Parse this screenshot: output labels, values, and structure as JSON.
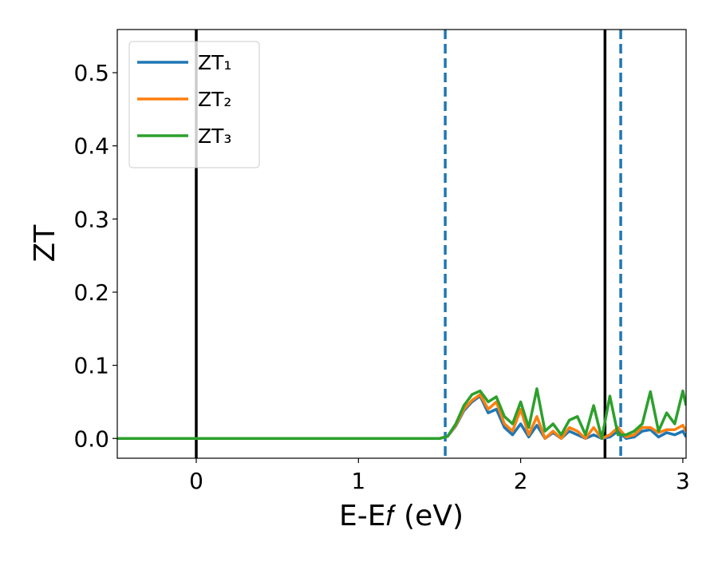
{
  "chart_data": {
    "type": "line",
    "xlabel": "E-E𝑓 (eV)",
    "ylabel": "ZT",
    "x": [
      -0.49,
      1.5,
      1.55,
      1.6,
      1.65,
      1.7,
      1.75,
      1.8,
      1.85,
      1.9,
      1.95,
      2.0,
      2.05,
      2.1,
      2.15,
      2.2,
      2.25,
      2.3,
      2.35,
      2.4,
      2.45,
      2.5,
      2.55,
      2.6,
      2.65,
      2.7,
      2.75,
      2.8,
      2.85,
      2.9,
      2.95,
      3.0,
      3.02
    ],
    "series": [
      {
        "name": "ZT₁",
        "color": "#1f77b4",
        "values": [
          0,
          0,
          0.003,
          0.017,
          0.038,
          0.05,
          0.058,
          0.035,
          0.04,
          0.015,
          0.005,
          0.02,
          0.002,
          0.018,
          0,
          0.008,
          0,
          0.01,
          0.005,
          0,
          0.005,
          0,
          0.002,
          0.01,
          0,
          0.002,
          0.01,
          0.012,
          0.002,
          0.008,
          0.005,
          0.01,
          0.002
        ]
      },
      {
        "name": "ZT₂",
        "color": "#ff7f0e",
        "values": [
          0,
          0,
          0.003,
          0.018,
          0.04,
          0.052,
          0.06,
          0.04,
          0.05,
          0.02,
          0.01,
          0.04,
          0.005,
          0.03,
          0,
          0.01,
          0,
          0.015,
          0.01,
          0,
          0.015,
          0,
          0.005,
          0.015,
          0.002,
          0.005,
          0.015,
          0.015,
          0.008,
          0.012,
          0.012,
          0.018,
          0.01
        ]
      },
      {
        "name": "ZT₃",
        "color": "#2ca02c",
        "values": [
          0,
          0,
          0.003,
          0.02,
          0.045,
          0.06,
          0.065,
          0.05,
          0.057,
          0.03,
          0.02,
          0.05,
          0.015,
          0.068,
          0.01,
          0.02,
          0.005,
          0.025,
          0.03,
          0.005,
          0.045,
          0,
          0.058,
          0.005,
          0.005,
          0.01,
          0.02,
          0.064,
          0.01,
          0.035,
          0.02,
          0.065,
          0.045
        ]
      }
    ],
    "vlines": [
      {
        "x": 0,
        "color": "#000000",
        "dashed": false
      },
      {
        "x": 1.535,
        "color": "#1f77b4",
        "dashed": true
      },
      {
        "x": 2.52,
        "color": "#000000",
        "dashed": false
      },
      {
        "x": 2.617,
        "color": "#1f77b4",
        "dashed": true
      }
    ],
    "xlim": [
      -0.487,
      3.02
    ],
    "ylim": [
      -0.027,
      0.559
    ],
    "xticks": [
      0,
      1,
      2,
      3
    ],
    "yticks": [
      {
        "value": 0,
        "label": "0.0"
      },
      {
        "value": 0.1,
        "label": "0.1"
      },
      {
        "value": 0.2,
        "label": "0.2"
      },
      {
        "value": 0.3,
        "label": "0.3"
      },
      {
        "value": 0.4,
        "label": "0.4"
      },
      {
        "value": 0.5,
        "label": "0.5"
      }
    ],
    "legend": "upper left",
    "grid": false
  }
}
